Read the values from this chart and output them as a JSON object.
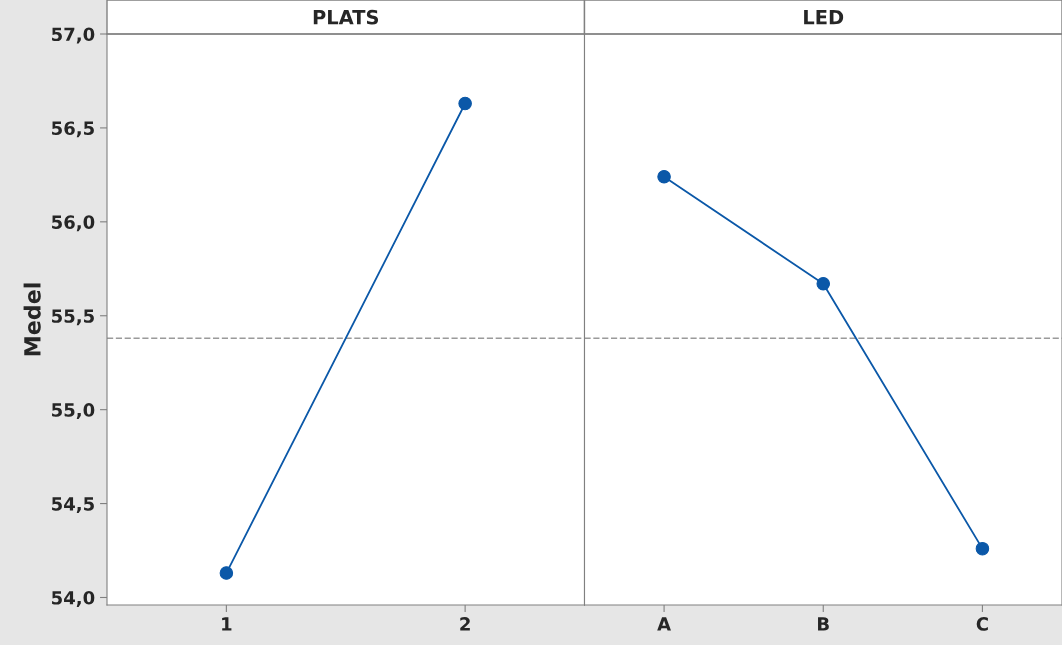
{
  "chart_data": [
    {
      "type": "line",
      "title": "PLATS",
      "ylabel": "Medel",
      "categories": [
        "1",
        "2"
      ],
      "series": [
        {
          "color": "#0b58a8",
          "values": [
            54.13,
            56.63
          ]
        }
      ],
      "ylim": [
        53.96,
        57.0
      ],
      "yticks": [
        {
          "value": 54,
          "label": "54,0"
        },
        {
          "value": 54.5,
          "label": "54,5"
        },
        {
          "value": 55,
          "label": "55,0"
        },
        {
          "value": 55.5,
          "label": "55,5"
        },
        {
          "value": 56,
          "label": "56,0"
        },
        {
          "value": 56.5,
          "label": "56,5"
        },
        {
          "value": 57,
          "label": "57,0"
        }
      ],
      "ref_lines": [
        {
          "axis": "y",
          "value": 55.38,
          "color": "#9a9a9a",
          "line_style": "dashed"
        }
      ],
      "marker": "circle",
      "line_style": "solid",
      "grid": false,
      "legend": false
    },
    {
      "type": "line",
      "title": "LED",
      "categories": [
        "A",
        "B",
        "C"
      ],
      "series": [
        {
          "color": "#0b58a8",
          "values": [
            56.24,
            55.67,
            54.26
          ]
        }
      ],
      "ylim": [
        53.96,
        57.0
      ],
      "ref_lines": [
        {
          "axis": "y",
          "value": 55.38,
          "color": "#9a9a9a",
          "line_style": "dashed"
        }
      ],
      "marker": "circle",
      "line_style": "solid",
      "grid": false,
      "legend": false,
      "tick_labels": "x"
    }
  ]
}
